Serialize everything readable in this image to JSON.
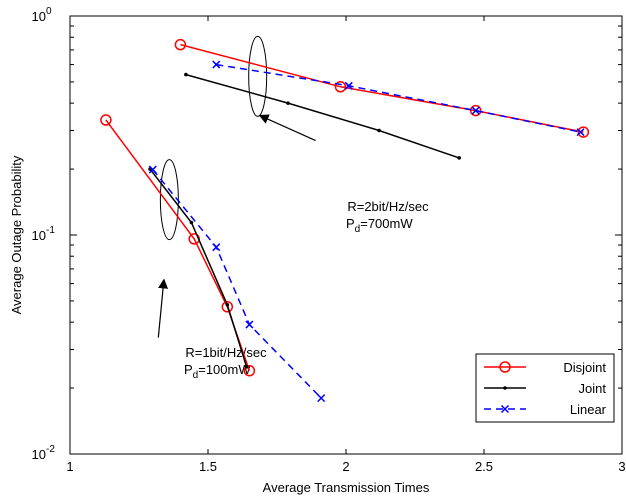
{
  "chart_data": {
    "type": "line",
    "title": "",
    "xlabel": "Average Transmission Times",
    "ylabel": "Average Outage Probability",
    "xlim": [
      1,
      3
    ],
    "ylim": [
      0.01,
      1
    ],
    "yscale": "log",
    "grid": false,
    "legend_position": "bottom-right",
    "x_ticks": [
      1,
      1.5,
      2,
      2.5,
      3
    ],
    "x_tick_labels": [
      "1",
      "1.5",
      "2",
      "2.5",
      "3"
    ],
    "y_ticks": [
      0.01,
      0.1,
      1
    ],
    "y_tick_labels": [
      {
        "base": "10",
        "exp": "-2"
      },
      {
        "base": "10",
        "exp": "-1"
      },
      {
        "base": "10",
        "exp": "0"
      }
    ],
    "series": [
      {
        "name": "Disjoint",
        "color": "#ff0000",
        "marker": "circle",
        "dash": "solid",
        "segments": [
          [
            [
              1.13,
              0.335
            ],
            [
              1.45,
              0.096
            ],
            [
              1.57,
              0.047
            ],
            [
              1.65,
              0.024
            ]
          ],
          [
            [
              1.4,
              0.74
            ],
            [
              1.98,
              0.475
            ],
            [
              2.47,
              0.37
            ],
            [
              2.86,
              0.295
            ]
          ]
        ]
      },
      {
        "name": "Joint",
        "color": "#000000",
        "marker": "dot",
        "dash": "solid",
        "segments": [
          [
            [
              1.29,
              0.2
            ],
            [
              1.44,
              0.114
            ],
            [
              1.57,
              0.048
            ],
            [
              1.64,
              0.025
            ]
          ],
          [
            [
              1.42,
              0.54
            ],
            [
              1.79,
              0.4
            ],
            [
              2.12,
              0.3
            ],
            [
              2.41,
              0.225
            ]
          ]
        ]
      },
      {
        "name": "Linear",
        "color": "#0000ff",
        "marker": "x",
        "dash": "dashed",
        "segments": [
          [
            [
              1.3,
              0.199
            ],
            [
              1.53,
              0.088
            ],
            [
              1.65,
              0.039
            ],
            [
              1.91,
              0.018
            ]
          ],
          [
            [
              1.53,
              0.6
            ],
            [
              2.01,
              0.48
            ],
            [
              2.47,
              0.37
            ],
            [
              2.85,
              0.295
            ]
          ]
        ]
      }
    ],
    "annotations": [
      {
        "id": "ann-2bit",
        "lines": [
          {
            "text": "R=2bit/Hz/sec"
          },
          {
            "base": "P",
            "sub": "d",
            "rest": "=700mW"
          }
        ],
        "ellipse_center": [
          1.68,
          0.53
        ],
        "arrow_from": [
          1.89,
          0.27
        ],
        "arrow_to": [
          1.69,
          0.35
        ]
      },
      {
        "id": "ann-1bit",
        "lines": [
          {
            "text": "R=1bit/Hz/sec"
          },
          {
            "base": "P",
            "sub": "d",
            "rest": "=100mW"
          }
        ],
        "ellipse_center": [
          1.36,
          0.145
        ],
        "arrow_from": [
          1.32,
          0.034
        ],
        "arrow_to": [
          1.34,
          0.062
        ]
      }
    ]
  }
}
